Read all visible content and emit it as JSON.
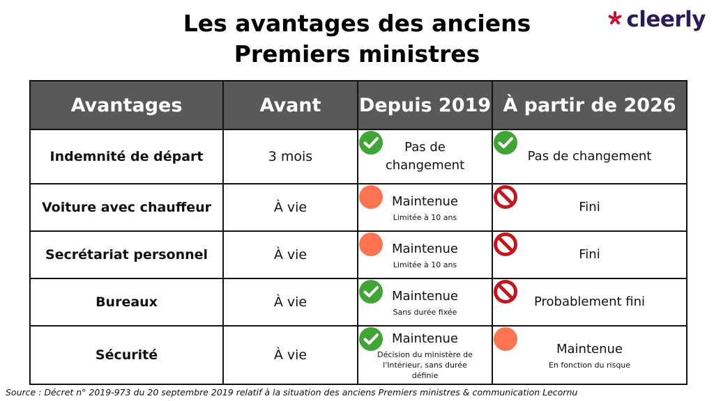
{
  "title": {
    "line1": "Les avantages des anciens",
    "line2": "Premiers ministres"
  },
  "logo": {
    "text": "cleerly",
    "mark_icon": "asterisk-icon",
    "mark_color": "#c8102e",
    "text_color": "#2b1a5c"
  },
  "colors": {
    "header_bg": "#595959",
    "check": "#3fa535",
    "orange": "#ff7350",
    "prohibited": "#c4161c"
  },
  "table": {
    "headers": [
      "Avantages",
      "Avant",
      "Depuis 2019",
      "À partir de 2026"
    ],
    "rows": [
      {
        "label": "Indemnité de départ",
        "avant": "3 mois",
        "depuis_2019": {
          "icon": "check-icon",
          "main": "Pas de changement",
          "sub": ""
        },
        "partir_2026": {
          "icon": "check-icon",
          "main": "Pas de changement",
          "sub": ""
        }
      },
      {
        "label": "Voiture avec chauffeur",
        "avant": "À vie",
        "depuis_2019": {
          "icon": "orange-circle-icon",
          "main": "Maintenue",
          "sub": "Limitée à 10 ans"
        },
        "partir_2026": {
          "icon": "prohibited-icon",
          "main": "Fini",
          "sub": ""
        }
      },
      {
        "label": "Secrétariat personnel",
        "avant": "À vie",
        "depuis_2019": {
          "icon": "orange-circle-icon",
          "main": "Maintenue",
          "sub": "Limitée à 10 ans"
        },
        "partir_2026": {
          "icon": "prohibited-icon",
          "main": "Fini",
          "sub": ""
        }
      },
      {
        "label": "Bureaux",
        "avant": "À vie",
        "depuis_2019": {
          "icon": "check-icon",
          "main": "Maintenue",
          "sub": "Sans durée fixée"
        },
        "partir_2026": {
          "icon": "prohibited-icon",
          "main": "Probablement fini",
          "sub": ""
        }
      },
      {
        "label": "Sécurité",
        "avant": "À vie",
        "depuis_2019": {
          "icon": "check-icon",
          "main": "Maintenue",
          "sub": "Décision du ministère de l'Intérieur, sans durée définie"
        },
        "partir_2026": {
          "icon": "orange-circle-icon",
          "main": "Maintenue",
          "sub": "En fonction du risque"
        }
      }
    ]
  },
  "source": "Source : Décret n° 2019-973 du 20 septembre 2019 relatif à la situation des anciens Premiers ministres & communication Lecornu"
}
